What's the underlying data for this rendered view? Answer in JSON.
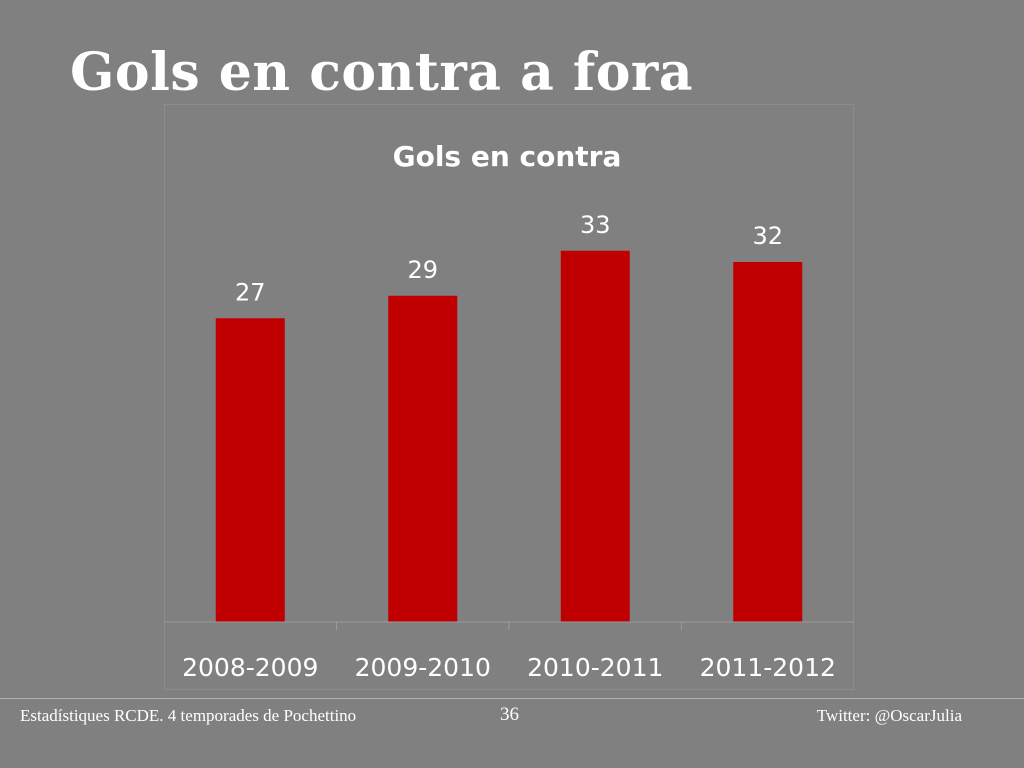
{
  "slide": {
    "title": "Gols en contra a fora",
    "footer_left": "Estadístiques RCDE. 4 temporades de Pochettino",
    "page_number": "36",
    "footer_right": "Twitter: @OscarJulia"
  },
  "chart_data": {
    "type": "bar",
    "title": "Gols en contra",
    "categories": [
      "2008-2009",
      "2009-2010",
      "2010-2011",
      "2011-2012"
    ],
    "values": [
      27,
      29,
      33,
      32
    ],
    "ylim": [
      0,
      40
    ],
    "grid": false,
    "data_labels": true,
    "bar_color": "#c00000"
  }
}
